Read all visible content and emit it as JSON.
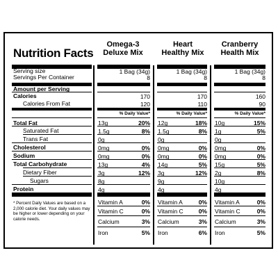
{
  "title": "Nutrition Facts",
  "products": [
    {
      "name_line1": "Omega-3",
      "name_line2": "Deluxe Mix"
    },
    {
      "name_line1": "Heart",
      "name_line2": "Healthy Mix"
    },
    {
      "name_line1": "Cranberry",
      "name_line2": "Health Mix"
    }
  ],
  "labels": {
    "serving_size": "Serving size",
    "servings_per_container": "Servings Per Container",
    "amount_per_serving": "Amount per Serving",
    "calories": "Calories",
    "calories_from_fat": "Calories From Fat",
    "daily_value_header": "% Daily Value*",
    "total_fat": "Total Fat",
    "saturated_fat": "Saturated Fat",
    "trans_fat": "Trans Fat",
    "cholesterol": "Cholesterol",
    "sodium": "Sodium",
    "total_carbohydrate": "Total Carbohydrate",
    "dietary_fiber": "Dietary Fiber",
    "sugars": "Sugars",
    "protein": "Protein",
    "footnote": "* Percent Daily Values are based on a 2,000 calorie diet. Your daily values may be higher or lower depending on your calorie needs."
  },
  "columns": [
    {
      "serving_size": "1 Bag (34g)",
      "servings": "8",
      "calories": "170",
      "calories_from_fat": "120",
      "total_fat": "13g",
      "total_fat_dv": "20%",
      "sat_fat": "1.5g",
      "sat_fat_dv": "8%",
      "trans_fat": "0g",
      "cholesterol": "0mg",
      "cholesterol_dv": "0%",
      "sodium": "0mg",
      "sodium_dv": "0%",
      "carb": "13g",
      "carb_dv": "4%",
      "fiber": "3g",
      "fiber_dv": "12%",
      "sugars": "8g",
      "protein": "4g",
      "vit_a_label": "Vitamin A",
      "vit_a": "0%",
      "vit_c_label": "Vitamin C",
      "vit_c": "0%",
      "calcium_label": "Calcium",
      "calcium": "3%",
      "iron_label": "Iron",
      "iron": "5%"
    },
    {
      "serving_size": "1 Bag (34g)",
      "servings": "8",
      "calories": "170",
      "calories_from_fat": "110",
      "total_fat": "12g",
      "total_fat_dv": "18%",
      "sat_fat": "1.5g",
      "sat_fat_dv": "8%",
      "trans_fat": "0g",
      "cholesterol": "0mg",
      "cholesterol_dv": "0%",
      "sodium": "0mg",
      "sodium_dv": "0%",
      "carb": "14g",
      "carb_dv": "5%",
      "fiber": "3g",
      "fiber_dv": "12%",
      "sugars": "9g",
      "protein": "4g",
      "vit_a_label": "Vitamin A",
      "vit_a": "0%",
      "vit_c_label": "Vitamin C",
      "vit_c": "0%",
      "calcium_label": "Calcium",
      "calcium": "3%",
      "iron_label": "Iron",
      "iron": "6%"
    },
    {
      "serving_size": "1 Bag (34g)",
      "servings": "8",
      "calories": "160",
      "calories_from_fat": "90",
      "total_fat": "10g",
      "total_fat_dv": "15%",
      "sat_fat": "1g",
      "sat_fat_dv": "5%",
      "trans_fat": "0g",
      "cholesterol": "0mg",
      "cholesterol_dv": "0%",
      "sodium": "0mg",
      "sodium_dv": "0%",
      "carb": "15g",
      "carb_dv": "5%",
      "fiber": "2g",
      "fiber_dv": "8%",
      "sugars": "10g",
      "protein": "4g",
      "vit_a_label": "Vitamin A",
      "vit_a": "0%",
      "vit_c_label": "Vitamin C",
      "vit_c": "0%",
      "calcium_label": "Calcium",
      "calcium": "3%",
      "iron_label": "Iron",
      "iron": "5%"
    }
  ]
}
